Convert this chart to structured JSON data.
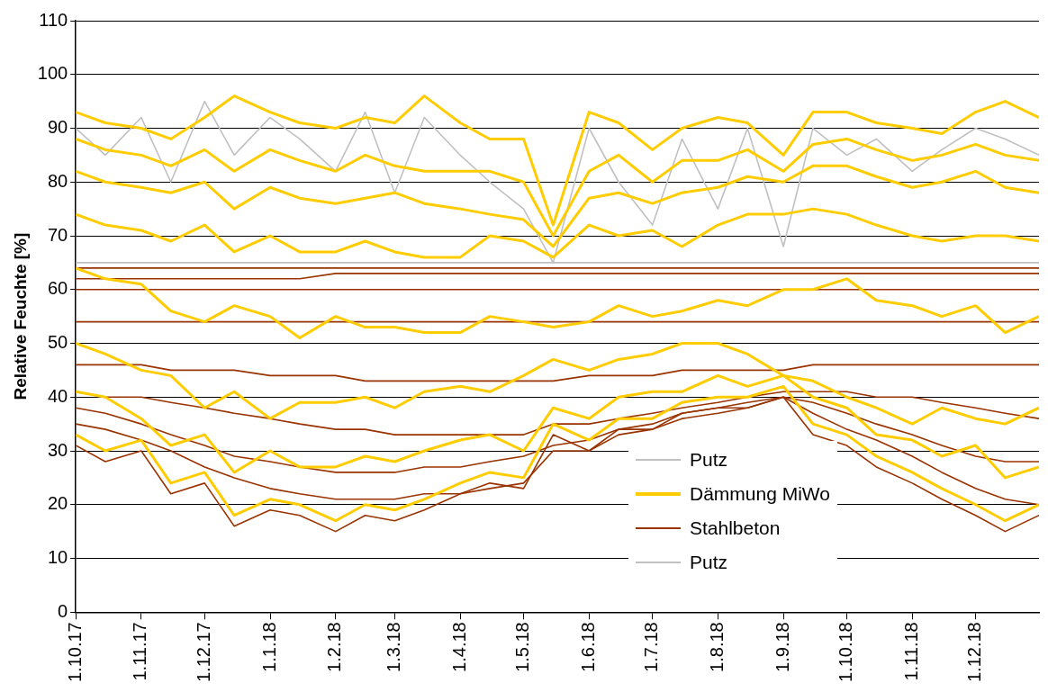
{
  "chart_data": {
    "type": "line",
    "ylabel": "Relative Feuchte [%]",
    "ylim": [
      0,
      110
    ],
    "yticks": [
      0,
      10,
      20,
      30,
      40,
      50,
      60,
      70,
      80,
      90,
      100,
      110
    ],
    "xlim": [
      "2017-10-01",
      "2018-12-31"
    ],
    "xticks": [
      {
        "value": "2017-10-01",
        "label": "1.10.17"
      },
      {
        "value": "2017-11-01",
        "label": "1.11.17"
      },
      {
        "value": "2017-12-01",
        "label": "1.12.17"
      },
      {
        "value": "2018-01-01",
        "label": "1.1.18"
      },
      {
        "value": "2018-02-01",
        "label": "1.2.18"
      },
      {
        "value": "2018-03-01",
        "label": "1.3.18"
      },
      {
        "value": "2018-04-01",
        "label": "1.4.18"
      },
      {
        "value": "2018-05-01",
        "label": "1.5.18"
      },
      {
        "value": "2018-06-01",
        "label": "1.6.18"
      },
      {
        "value": "2018-07-01",
        "label": "1.7.18"
      },
      {
        "value": "2018-08-01",
        "label": "1.8.18"
      },
      {
        "value": "2018-09-01",
        "label": "1.9.18"
      },
      {
        "value": "2018-10-01",
        "label": "1.10.18"
      },
      {
        "value": "2018-11-01",
        "label": "1.11.18"
      },
      {
        "value": "2018-12-01",
        "label": "1.12.18"
      }
    ],
    "grid": "y",
    "legend": "bottom",
    "marker": "none",
    "line_style": "solid",
    "x": [
      "2017-10-01",
      "2017-10-15",
      "2017-11-01",
      "2017-11-15",
      "2017-12-01",
      "2017-12-15",
      "2018-01-01",
      "2018-01-15",
      "2018-02-01",
      "2018-02-15",
      "2018-03-01",
      "2018-03-15",
      "2018-04-01",
      "2018-04-15",
      "2018-05-01",
      "2018-05-15",
      "2018-06-01",
      "2018-06-15",
      "2018-07-01",
      "2018-07-15",
      "2018-08-01",
      "2018-08-15",
      "2018-09-01",
      "2018-09-15",
      "2018-10-01",
      "2018-10-15",
      "2018-11-01",
      "2018-11-15",
      "2018-12-01",
      "2018-12-15",
      "2018-12-31"
    ],
    "series": [
      {
        "name": "Putz",
        "color": "#c0c0c0",
        "values": [
          90,
          85,
          92,
          80,
          95,
          85,
          92,
          88,
          82,
          93,
          78,
          92,
          85,
          80,
          75,
          65,
          90,
          80,
          72,
          88,
          75,
          90,
          68,
          90,
          85,
          88,
          82,
          86,
          90,
          88,
          85
        ]
      },
      {
        "name": "Dämmung MiWo",
        "color": "#ffcc00",
        "values": [
          93,
          91,
          90,
          88,
          92,
          96,
          93,
          91,
          90,
          92,
          91,
          96,
          91,
          88,
          88,
          72,
          93,
          91,
          86,
          90,
          92,
          91,
          85,
          93,
          93,
          91,
          90,
          89,
          93,
          95,
          92
        ]
      },
      {
        "name": "Stahlbeton",
        "color": "#993300",
        "values": [
          31,
          28,
          30,
          22,
          24,
          16,
          19,
          18,
          15,
          18,
          17,
          19,
          22,
          24,
          23,
          33,
          30,
          34,
          34,
          37,
          38,
          38,
          40,
          33,
          31,
          27,
          24,
          21,
          18,
          15,
          18
        ]
      },
      {
        "name": "Putz",
        "color": "#c0c0c0",
        "values": [
          65,
          65,
          65,
          65,
          65,
          65,
          65,
          65,
          65,
          65,
          65,
          65,
          65,
          65,
          65,
          65,
          65,
          65,
          65,
          65,
          65,
          65,
          65,
          65,
          65,
          65,
          65,
          65,
          65,
          65,
          65
        ]
      },
      {
        "color": "#ffcc00",
        "values": [
          88,
          86,
          85,
          83,
          86,
          82,
          86,
          84,
          82,
          85,
          83,
          82,
          82,
          82,
          80,
          70,
          82,
          85,
          80,
          84,
          84,
          86,
          82,
          87,
          88,
          86,
          84,
          85,
          87,
          85,
          84
        ]
      },
      {
        "color": "#ffcc00",
        "values": [
          82,
          80,
          79,
          78,
          80,
          75,
          79,
          77,
          76,
          77,
          78,
          76,
          75,
          74,
          73,
          68,
          77,
          78,
          76,
          78,
          79,
          81,
          80,
          83,
          83,
          81,
          79,
          80,
          82,
          79,
          78
        ]
      },
      {
        "color": "#ffcc00",
        "values": [
          74,
          72,
          71,
          69,
          72,
          67,
          70,
          67,
          67,
          69,
          67,
          66,
          66,
          70,
          69,
          66,
          72,
          70,
          71,
          68,
          72,
          74,
          74,
          75,
          74,
          72,
          70,
          69,
          70,
          70,
          69
        ]
      },
      {
        "color": "#ffcc00",
        "values": [
          64,
          62,
          61,
          56,
          54,
          57,
          55,
          51,
          55,
          53,
          53,
          52,
          52,
          55,
          54,
          53,
          54,
          57,
          55,
          56,
          58,
          57,
          60,
          60,
          62,
          58,
          57,
          55,
          57,
          52,
          55
        ]
      },
      {
        "color": "#ffcc00",
        "values": [
          50,
          48,
          45,
          44,
          38,
          41,
          36,
          39,
          39,
          40,
          38,
          41,
          42,
          41,
          44,
          47,
          45,
          47,
          48,
          50,
          50,
          48,
          44,
          43,
          40,
          38,
          35,
          38,
          36,
          35,
          38
        ]
      },
      {
        "color": "#ffcc00",
        "values": [
          41,
          40,
          36,
          31,
          33,
          26,
          30,
          27,
          27,
          29,
          28,
          30,
          32,
          33,
          30,
          38,
          36,
          40,
          41,
          41,
          44,
          42,
          44,
          40,
          38,
          33,
          32,
          29,
          31,
          25,
          27
        ]
      },
      {
        "color": "#ffcc00",
        "values": [
          33,
          30,
          32,
          24,
          26,
          18,
          21,
          20,
          17,
          20,
          19,
          21,
          24,
          26,
          25,
          35,
          32,
          36,
          36,
          39,
          40,
          40,
          42,
          35,
          33,
          29,
          26,
          23,
          20,
          17,
          20
        ]
      },
      {
        "color": "#993300",
        "values": [
          64,
          64,
          64,
          64,
          64,
          64,
          64,
          64,
          64,
          64,
          64,
          64,
          64,
          64,
          64,
          64,
          64,
          64,
          64,
          64,
          64,
          64,
          64,
          64,
          64,
          64,
          64,
          64,
          64,
          64,
          64
        ]
      },
      {
        "color": "#993300",
        "values": [
          62,
          62,
          62,
          62,
          62,
          62,
          62,
          62,
          63,
          63,
          63,
          63,
          63,
          63,
          63,
          63,
          63,
          63,
          63,
          63,
          63,
          63,
          63,
          63,
          63,
          63,
          63,
          63,
          63,
          63,
          63
        ]
      },
      {
        "color": "#993300",
        "values": [
          60,
          60,
          60,
          60,
          60,
          60,
          60,
          60,
          60,
          60,
          60,
          60,
          60,
          60,
          60,
          60,
          60,
          60,
          60,
          60,
          60,
          60,
          60,
          60,
          60,
          60,
          60,
          60,
          60,
          60,
          60
        ]
      },
      {
        "color": "#993300",
        "values": [
          54,
          54,
          54,
          54,
          54,
          54,
          54,
          54,
          54,
          54,
          54,
          54,
          54,
          54,
          54,
          54,
          54,
          54,
          54,
          54,
          54,
          54,
          54,
          54,
          54,
          54,
          54,
          54,
          54,
          54,
          54
        ]
      },
      {
        "color": "#993300",
        "values": [
          46,
          46,
          46,
          45,
          45,
          45,
          44,
          44,
          44,
          43,
          43,
          43,
          43,
          43,
          43,
          43,
          44,
          44,
          44,
          45,
          45,
          45,
          45,
          46,
          46,
          46,
          46,
          46,
          46,
          46,
          46
        ]
      },
      {
        "color": "#993300",
        "values": [
          41,
          40,
          40,
          39,
          38,
          37,
          36,
          35,
          34,
          34,
          33,
          33,
          33,
          33,
          33,
          35,
          35,
          36,
          37,
          38,
          39,
          40,
          41,
          41,
          41,
          40,
          40,
          39,
          38,
          37,
          36
        ]
      },
      {
        "color": "#993300",
        "values": [
          38,
          37,
          35,
          33,
          31,
          29,
          28,
          27,
          26,
          26,
          26,
          27,
          27,
          28,
          29,
          31,
          32,
          34,
          35,
          37,
          38,
          39,
          40,
          39,
          37,
          35,
          33,
          31,
          29,
          28,
          28
        ]
      },
      {
        "color": "#993300",
        "values": [
          35,
          34,
          32,
          30,
          27,
          25,
          23,
          22,
          21,
          21,
          21,
          22,
          22,
          23,
          24,
          30,
          30,
          33,
          34,
          36,
          37,
          38,
          40,
          37,
          34,
          32,
          29,
          26,
          23,
          21,
          20
        ]
      }
    ]
  }
}
